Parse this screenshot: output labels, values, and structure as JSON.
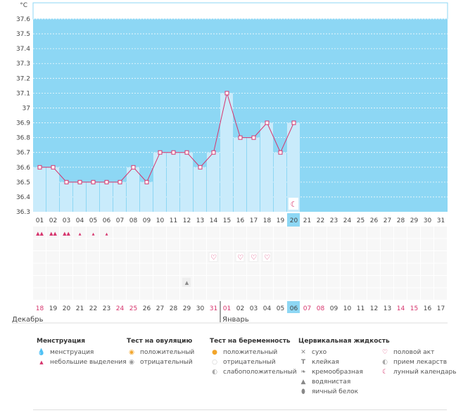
{
  "chart_data": {
    "type": "line",
    "ylabel": "°C",
    "ylim": [
      36.3,
      37.6
    ],
    "yticks": [
      "36.3",
      "36.4",
      "36.5",
      "36.6",
      "36.7",
      "36.8",
      "36.9",
      "37",
      "37.1",
      "37.2",
      "37.3",
      "37.4",
      "37.5",
      "37.6"
    ],
    "cycle_days": [
      "01",
      "02",
      "03",
      "04",
      "05",
      "06",
      "07",
      "08",
      "09",
      "10",
      "11",
      "12",
      "13",
      "14",
      "15",
      "16",
      "17",
      "18",
      "19",
      "20",
      "21",
      "22",
      "23",
      "24",
      "25",
      "26",
      "27",
      "28",
      "29",
      "30",
      "31"
    ],
    "current_day": "20",
    "temperatures": [
      36.6,
      36.6,
      36.5,
      36.5,
      36.5,
      36.5,
      36.5,
      36.6,
      36.5,
      36.7,
      36.7,
      36.7,
      36.6,
      36.7,
      37.1,
      36.8,
      36.8,
      36.9,
      36.7,
      36.9
    ],
    "dates": [
      "18",
      "19",
      "20",
      "21",
      "22",
      "23",
      "24",
      "25",
      "26",
      "27",
      "28",
      "29",
      "30",
      "31",
      "01",
      "02",
      "03",
      "04",
      "05",
      "06",
      "07",
      "08",
      "09",
      "10",
      "11",
      "12",
      "13",
      "14",
      "15",
      "16",
      "17"
    ],
    "red_dates": [
      0,
      6,
      7,
      13,
      14,
      20,
      21,
      27,
      28
    ],
    "month_labels": [
      {
        "label": "Декабрь",
        "index": 0
      },
      {
        "label": "Январь",
        "index": 14
      }
    ],
    "menstruation_marks": [
      {
        "day": 0,
        "type": "heavy"
      },
      {
        "day": 1,
        "type": "heavy"
      },
      {
        "day": 2,
        "type": "heavy"
      },
      {
        "day": 3,
        "type": "light"
      },
      {
        "day": 4,
        "type": "light"
      },
      {
        "day": 5,
        "type": "light"
      }
    ],
    "intercourse_marks": [
      13,
      15,
      16,
      17
    ],
    "fluid_marks": [
      {
        "day": 11,
        "type": "watery"
      }
    ],
    "moon_marks": [
      19
    ],
    "colors": {
      "plot_bg": "#8dd7f4",
      "bar_fill": "#c9ebfb",
      "line": "#d6336c",
      "highlight": "#8dd7f4",
      "red_text": "#d6336c"
    }
  },
  "legend": {
    "menstruation": {
      "title": "Менструация",
      "items": [
        {
          "icon": "heavy-drop",
          "label": "менструация"
        },
        {
          "icon": "light-drop",
          "label": "небольшие выделения"
        }
      ]
    },
    "ovulation": {
      "title": "Тест на овуляцию",
      "items": [
        {
          "icon": "orange-circle",
          "label": "положительный"
        },
        {
          "icon": "gray-circle",
          "label": "отрицательный"
        }
      ]
    },
    "pregnancy": {
      "title": "Тест на беременность",
      "items": [
        {
          "icon": "orange-face",
          "label": "положительный"
        },
        {
          "icon": "white-face",
          "label": "отрицательный"
        },
        {
          "icon": "half-face",
          "label": "слабоположительный"
        }
      ]
    },
    "fluid": {
      "title": "Цервикальная жидкость",
      "items": [
        {
          "icon": "x",
          "label": "сухо"
        },
        {
          "icon": "t",
          "label": "клейкая"
        },
        {
          "icon": "curl",
          "label": "кремообразная"
        },
        {
          "icon": "drop",
          "label": "водянистая"
        },
        {
          "icon": "egg",
          "label": "яичный белок"
        }
      ]
    },
    "other": {
      "items": [
        {
          "icon": "heart",
          "label": "половой акт"
        },
        {
          "icon": "pill",
          "label": "прием лекарств"
        },
        {
          "icon": "moon",
          "label": "лунный календарь"
        }
      ]
    }
  }
}
